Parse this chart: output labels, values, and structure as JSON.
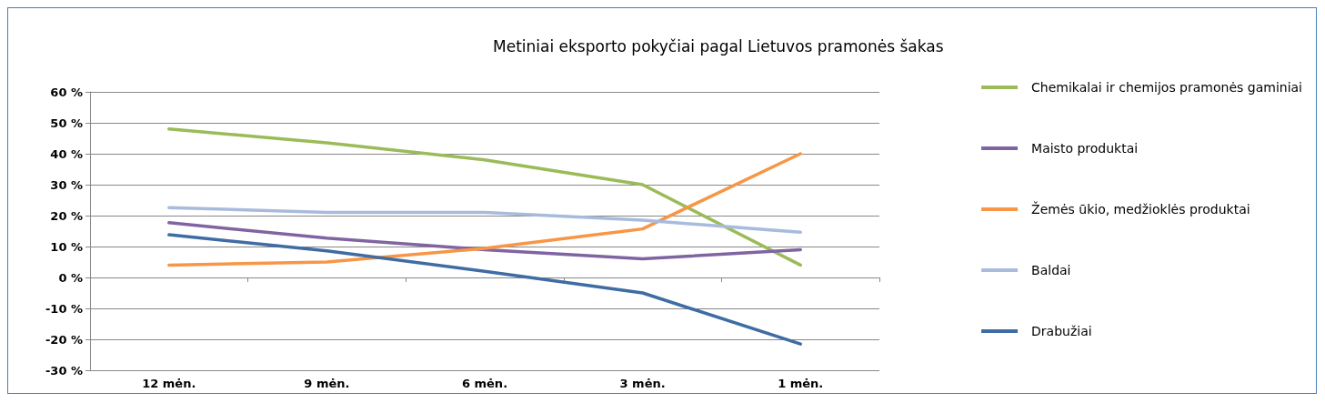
{
  "chart_data": {
    "type": "line",
    "title": "Metiniai eksporto pokyčiai pagal Lietuvos pramonės šakas",
    "categories": [
      "12 mėn.",
      "9 mėn.",
      "6 mėn.",
      "3 mėn.",
      "1 mėn."
    ],
    "series": [
      {
        "name": "Chemikalai ir chemijos pramonės gaminiai",
        "color": "#9bbb59",
        "values": [
          48,
          43.5,
          38,
          30,
          4
        ]
      },
      {
        "name": "Maisto produktai",
        "color": "#8064a2",
        "values": [
          17.7,
          12.7,
          9,
          6,
          9
        ]
      },
      {
        "name": "Žemės ūkio, medžioklės produktai",
        "color": "#f79646",
        "values": [
          4,
          5,
          9.4,
          15.7,
          40
        ]
      },
      {
        "name": "Baldai",
        "color": "#a9bbdc",
        "values": [
          22.6,
          21,
          21,
          18.5,
          14.6
        ]
      },
      {
        "name": "Drabužiai",
        "color": "#3e6ca3",
        "values": [
          13.8,
          8.6,
          2,
          -5,
          -21.5
        ]
      }
    ],
    "ylim": [
      -30,
      60
    ],
    "yticks": [
      {
        "value": -30,
        "label": "-30 %"
      },
      {
        "value": -20,
        "label": "-20 %"
      },
      {
        "value": -10,
        "label": "-10 %"
      },
      {
        "value": 0,
        "label": "0 %"
      },
      {
        "value": 10,
        "label": "10 %"
      },
      {
        "value": 20,
        "label": "20 %"
      },
      {
        "value": 30,
        "label": "30 %"
      },
      {
        "value": 40,
        "label": "40 %"
      },
      {
        "value": 50,
        "label": "50 %"
      },
      {
        "value": 60,
        "label": "60 %"
      }
    ],
    "grid": "y",
    "legend": "right",
    "marker": "none",
    "line_style": "solid"
  }
}
